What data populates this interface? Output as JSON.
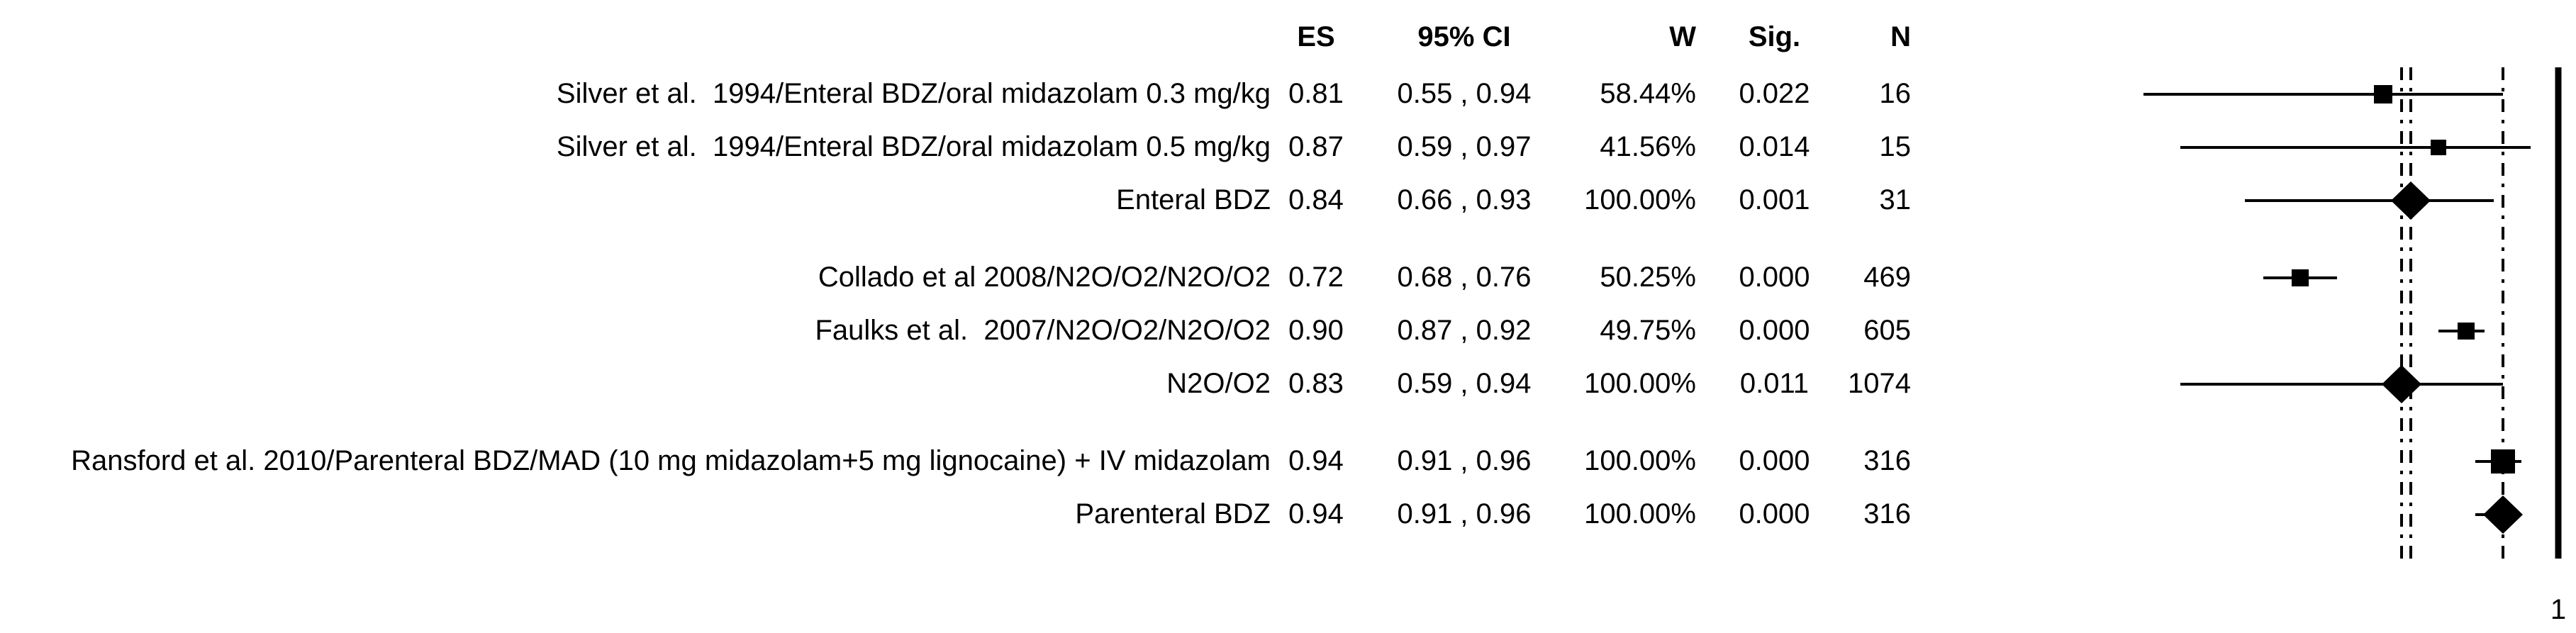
{
  "page": {
    "background": "#ffffff",
    "ink": "#000000"
  },
  "table": {
    "headers": {
      "es": "ES",
      "ci": "95% CI",
      "w": "W",
      "sig": "Sig.",
      "n": "N"
    },
    "rows": [
      {
        "label": "Silver et al.  1994/Enteral BDZ/oral midazolam 0.3 mg/kg",
        "type": "study",
        "es": "0.81",
        "ci": "0.55 , 0.94",
        "w": "58.44%",
        "sig": "0.022",
        "n": "16"
      },
      {
        "label": "Silver et al.  1994/Enteral BDZ/oral midazolam 0.5 mg/kg",
        "type": "study",
        "es": "0.87",
        "ci": "0.59 , 0.97",
        "w": "41.56%",
        "sig": "0.014",
        "n": "15"
      },
      {
        "label": "Enteral BDZ",
        "type": "pooled",
        "es": "0.84",
        "ci": "0.66 , 0.93",
        "w": "100.00%",
        "sig": "0.001",
        "n": "31"
      },
      {
        "label": "Collado et al 2008/N2O/O2/N2O/O2",
        "type": "study",
        "es": "0.72",
        "ci": "0.68 , 0.76",
        "w": "50.25%",
        "sig": "0.000",
        "n": "469"
      },
      {
        "label": "Faulks et al.  2007/N2O/O2/N2O/O2",
        "type": "study",
        "es": "0.90",
        "ci": "0.87 , 0.92",
        "w": "49.75%",
        "sig": "0.000",
        "n": "605"
      },
      {
        "label": "N2O/O2",
        "type": "pooled",
        "es": "0.83",
        "ci": "0.59 , 0.94",
        "w": "100.00%",
        "sig": "0.011",
        "n": "1074"
      },
      {
        "label": "Ransford et al. 2010/Parenteral BDZ/MAD (10 mg midazolam+5 mg lignocaine) + IV midazolam",
        "type": "study",
        "es": "0.94",
        "ci": "0.91 , 0.96",
        "w": "100.00%",
        "sig": "0.000",
        "n": "316"
      },
      {
        "label": "Parenteral BDZ",
        "type": "pooled",
        "es": "0.94",
        "ci": "0.91 , 0.96",
        "w": "100.00%",
        "sig": "0.000",
        "n": "316"
      }
    ]
  },
  "chart_data": {
    "type": "forest",
    "title": "",
    "xlabel": "",
    "legend": "none",
    "grid": "off",
    "x_axis": {
      "xlim": [
        0.44,
        1.005
      ],
      "ticks": [
        {
          "value": 1,
          "label": "1"
        }
      ]
    },
    "reference_lines": {
      "pooled_es_dashed": [
        0.84,
        0.83,
        0.94
      ],
      "axis_solid_at": 1
    },
    "points": [
      {
        "label": "Silver et al. 1994/Enteral BDZ/oral midazolam 0.3 mg/kg",
        "marker": "square",
        "es": 0.81,
        "ci_low": 0.55,
        "ci_high": 0.94,
        "weight_pct": 58.44,
        "sig": 0.022,
        "n": 16
      },
      {
        "label": "Silver et al. 1994/Enteral BDZ/oral midazolam 0.5 mg/kg",
        "marker": "square",
        "es": 0.87,
        "ci_low": 0.59,
        "ci_high": 0.97,
        "weight_pct": 41.56,
        "sig": 0.014,
        "n": 15
      },
      {
        "label": "Enteral BDZ",
        "marker": "diamond",
        "es": 0.84,
        "ci_low": 0.66,
        "ci_high": 0.93,
        "weight_pct": 100.0,
        "sig": 0.001,
        "n": 31
      },
      {
        "label": "Collado et al 2008/N2O/O2/N2O/O2",
        "marker": "square",
        "es": 0.72,
        "ci_low": 0.68,
        "ci_high": 0.76,
        "weight_pct": 50.25,
        "sig": 0.0,
        "n": 469
      },
      {
        "label": "Faulks et al. 2007/N2O/O2/N2O/O2",
        "marker": "square",
        "es": 0.9,
        "ci_low": 0.87,
        "ci_high": 0.92,
        "weight_pct": 49.75,
        "sig": 0.0,
        "n": 605
      },
      {
        "label": "N2O/O2",
        "marker": "diamond",
        "es": 0.83,
        "ci_low": 0.59,
        "ci_high": 0.94,
        "weight_pct": 100.0,
        "sig": 0.011,
        "n": 1074
      },
      {
        "label": "Ransford et al. 2010/Parenteral BDZ/MAD (10 mg midazolam+5 mg lignocaine) + IV midazolam",
        "marker": "square",
        "es": 0.94,
        "ci_low": 0.91,
        "ci_high": 0.96,
        "weight_pct": 100.0,
        "sig": 0.0,
        "n": 316
      },
      {
        "label": "Parenteral BDZ",
        "marker": "diamond",
        "es": 0.94,
        "ci_low": 0.91,
        "ci_high": 0.96,
        "weight_pct": 100.0,
        "sig": 0.0,
        "n": 316
      }
    ]
  }
}
